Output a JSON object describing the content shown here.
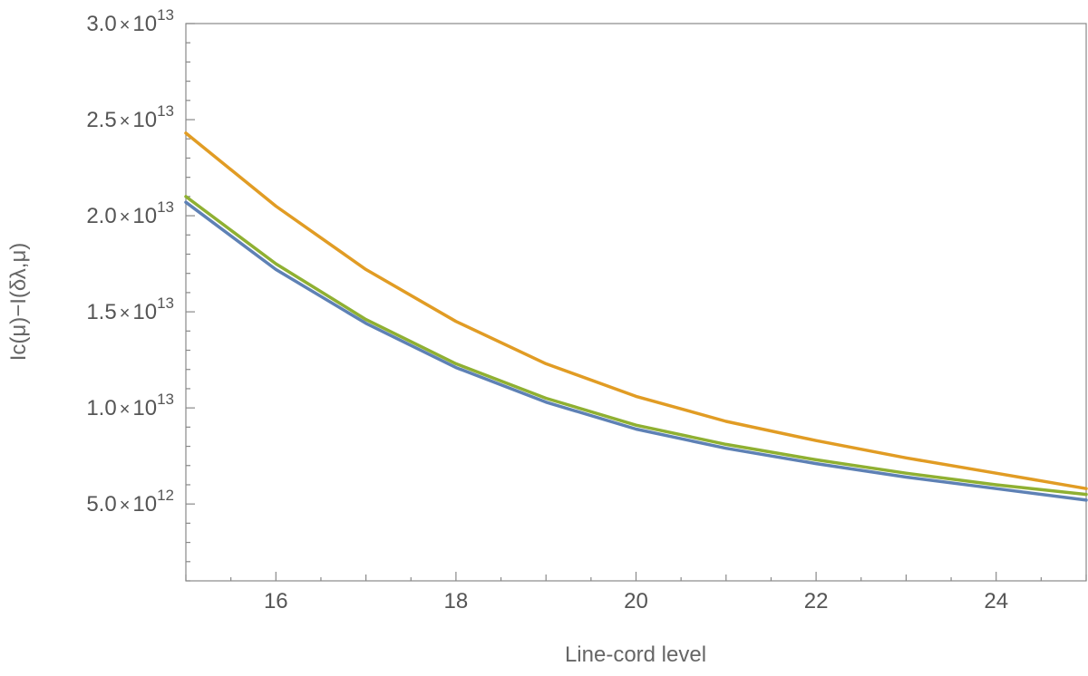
{
  "chart_data": {
    "type": "line",
    "title": "",
    "xlabel": "Line-cord level",
    "ylabel": "Ic(μ)−I(δλ,μ)",
    "xlim": [
      15,
      25
    ],
    "ylim": [
      1000000000000.0,
      30000000000000.0
    ],
    "x_ticks": [
      16,
      18,
      20,
      22,
      24
    ],
    "x_tick_labels": [
      "16",
      "18",
      "20",
      "22",
      "24"
    ],
    "y_ticks": [
      {
        "value": 5000000000000.0,
        "mantissa": "5.0",
        "times": "×",
        "base": "10",
        "exponent": "12"
      },
      {
        "value": 10000000000000.0,
        "mantissa": "1.0",
        "times": "×",
        "base": "10",
        "exponent": "13"
      },
      {
        "value": 15000000000000.0,
        "mantissa": "1.5",
        "times": "×",
        "base": "10",
        "exponent": "13"
      },
      {
        "value": 20000000000000.0,
        "mantissa": "2.0",
        "times": "×",
        "base": "10",
        "exponent": "13"
      },
      {
        "value": 25000000000000.0,
        "mantissa": "2.5",
        "times": "×",
        "base": "10",
        "exponent": "13"
      },
      {
        "value": 30000000000000.0,
        "mantissa": "3.0",
        "times": "×",
        "base": "10",
        "exponent": "13"
      }
    ],
    "x": [
      15,
      16,
      17,
      18,
      19,
      20,
      21,
      22,
      23,
      24,
      25
    ],
    "series": [
      {
        "color": "#5e81b5",
        "values": [
          20700000000000.0,
          17200000000000.0,
          14400000000000.0,
          12100000000000.0,
          10300000000000.0,
          8900000000000.0,
          7900000000000.0,
          7100000000000.0,
          6400000000000.0,
          5800000000000.0,
          5200000000000.0
        ]
      },
      {
        "color": "#e19c24",
        "values": [
          24300000000000.0,
          20500000000000.0,
          17200000000000.0,
          14500000000000.0,
          12300000000000.0,
          10600000000000.0,
          9300000000000.0,
          8300000000000.0,
          7400000000000.0,
          6600000000000.0,
          5800000000000.0
        ]
      },
      {
        "color": "#8fb032",
        "values": [
          21000000000000.0,
          17500000000000.0,
          14600000000000.0,
          12300000000000.0,
          10500000000000.0,
          9100000000000.0,
          8100000000000.0,
          7300000000000.0,
          6600000000000.0,
          6000000000000.0,
          5500000000000.0
        ]
      }
    ],
    "grid": false,
    "legend": "none"
  }
}
